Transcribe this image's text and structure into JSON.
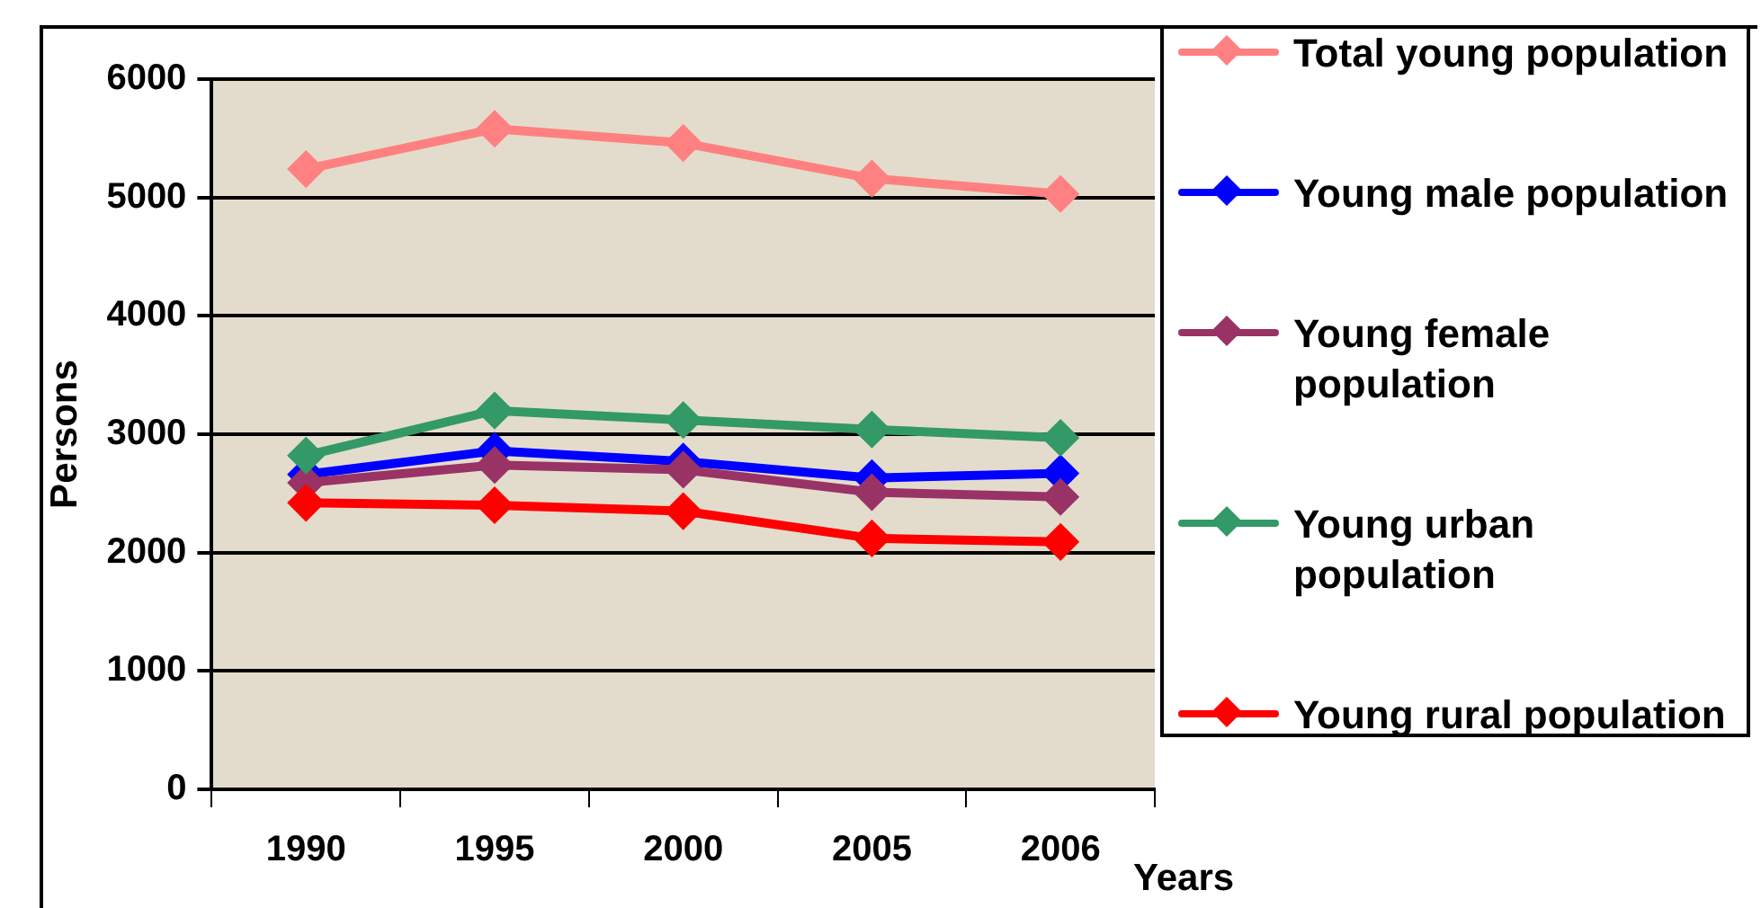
{
  "chart_data": {
    "type": "line",
    "xlabel": "Years",
    "ylabel": "Persons",
    "categories": [
      "1990",
      "1995",
      "2000",
      "2005",
      "2006"
    ],
    "series": [
      {
        "name": "Total young population",
        "color": "#ff8080",
        "values": [
          5240,
          5580,
          5460,
          5160,
          5030
        ]
      },
      {
        "name": "Young male population",
        "color": "#0000ff",
        "values": [
          2660,
          2860,
          2770,
          2630,
          2670
        ]
      },
      {
        "name": "Young female population",
        "color": "#993366",
        "values": [
          2590,
          2740,
          2700,
          2510,
          2470
        ]
      },
      {
        "name": "Young urban population",
        "color": "#339966",
        "values": [
          2820,
          3200,
          3120,
          3040,
          2970
        ]
      },
      {
        "name": "Young rural population",
        "color": "#ff0000",
        "values": [
          2420,
          2400,
          2350,
          2120,
          2090
        ]
      }
    ],
    "ylim": [
      0,
      6000
    ],
    "yticks": [
      0,
      1000,
      2000,
      3000,
      4000,
      5000,
      6000
    ],
    "grid": "y",
    "legend": "right",
    "marker": "diamond",
    "line_style": "solid"
  }
}
